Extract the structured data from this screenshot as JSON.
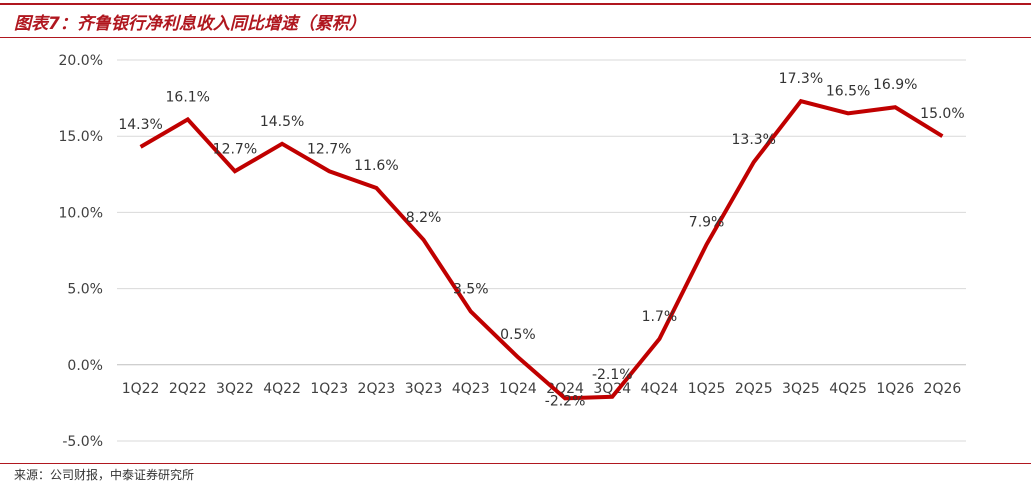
{
  "header": {
    "title": "图表7：齐鲁银行净利息收入同比增速（累积）"
  },
  "footer": {
    "source": "来源：公司财报，中泰证券研究所"
  },
  "colors": {
    "accent": "#b0171f",
    "line": "#c00000",
    "grid": "#d9d9d9"
  },
  "chart_data": {
    "type": "line",
    "categories": [
      "1Q22",
      "2Q22",
      "3Q22",
      "4Q22",
      "1Q23",
      "2Q23",
      "3Q23",
      "4Q23",
      "1Q24",
      "2Q24",
      "3Q24",
      "4Q24",
      "1Q25",
      "2Q25",
      "3Q25",
      "4Q25",
      "1Q26",
      "2Q26"
    ],
    "series": [
      {
        "values": [
          14.3,
          16.1,
          12.7,
          14.5,
          12.7,
          11.6,
          8.2,
          3.5,
          0.5,
          -2.2,
          -2.1,
          1.7,
          7.9,
          13.3,
          17.3,
          16.5,
          16.9,
          15.0
        ],
        "labels": [
          "14.3%",
          "16.1%",
          "12.7%",
          "14.5%",
          "12.7%",
          "11.6%",
          "8.2%",
          "3.5%",
          "0.5%",
          "-2.2%",
          "-2.1%",
          "1.7%",
          "7.9%",
          "13.3%",
          "17.3%",
          "16.5%",
          "16.9%",
          "15.0%"
        ]
      }
    ],
    "y_ticks": [
      20,
      15,
      10,
      5,
      0,
      -5
    ],
    "y_tick_labels": [
      "20.0%",
      "15.0%",
      "10.0%",
      "5.0%",
      "0.0%",
      "-5.0%"
    ],
    "ylim": [
      -5,
      20
    ],
    "grid": true,
    "xlabel": "",
    "ylabel": ""
  }
}
